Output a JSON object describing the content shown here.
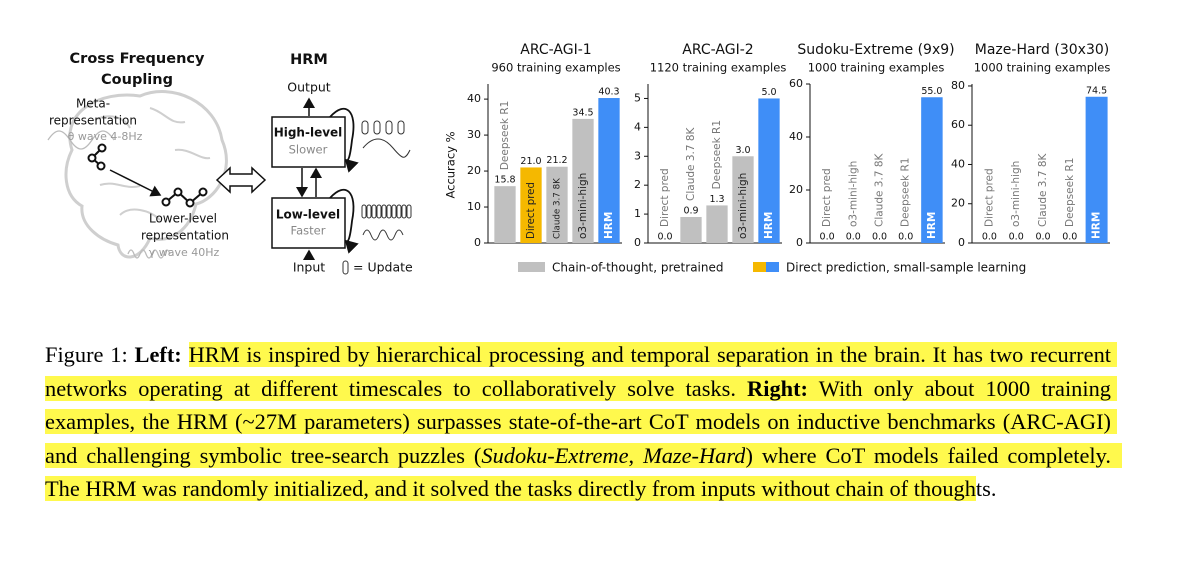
{
  "diagram": {
    "left": {
      "title": [
        "Cross Frequency",
        "Coupling"
      ],
      "meta": [
        "Meta-",
        "representation"
      ],
      "theta": "θ wave 4-8Hz",
      "lower": [
        "Lower-level",
        "representation"
      ],
      "gamma": "γ wave 40Hz"
    },
    "hrm": {
      "title": "HRM",
      "output": "Output",
      "high": "High-level",
      "slower": "Slower",
      "low": "Low-level",
      "faster": "Faster",
      "input": "Input",
      "update": "= Update"
    }
  },
  "chart_data": [
    {
      "type": "bar",
      "title": "ARC-AGI-1",
      "subtitle": "960 training examples",
      "ylabel": "Accuracy %",
      "categories": [
        "Deepseek R1",
        "Direct pred",
        "Claude 3.7 8K",
        "o3-mini-high",
        "HRM"
      ],
      "values": [
        15.8,
        21.0,
        21.2,
        34.5,
        40.3
      ],
      "value_labels": [
        "15.8",
        "21.0",
        "21.2",
        "34.5",
        "40.3"
      ],
      "colors": [
        "#c0c0c0",
        "#f5b800",
        "#c0c0c0",
        "#c0c0c0",
        "#3f8ef7"
      ],
      "ylim": [
        0,
        44.2
      ],
      "yticks": [
        0,
        10,
        20,
        30,
        40
      ]
    },
    {
      "type": "bar",
      "title": "ARC-AGI-2",
      "subtitle": "1120 training examples",
      "categories": [
        "Direct pred",
        "Claude 3.7 8K",
        "Deepseek R1",
        "o3-mini-high",
        "HRM"
      ],
      "values": [
        0.0,
        0.9,
        1.3,
        3.0,
        5.0
      ],
      "value_labels": [
        "0.0",
        "0.9",
        "1.3",
        "3.0",
        "5.0"
      ],
      "colors": [
        "#f5b800",
        "#c0c0c0",
        "#c0c0c0",
        "#c0c0c0",
        "#3f8ef7"
      ],
      "ylim": [
        0,
        5.5
      ],
      "yticks": [
        0,
        1,
        2,
        3,
        4,
        5
      ]
    },
    {
      "type": "bar",
      "title": "Sudoku-Extreme (9x9)",
      "subtitle": "1000 training examples",
      "categories": [
        "Direct pred",
        "o3-mini-high",
        "Claude 3.7 8K",
        "Deepseek R1",
        "HRM"
      ],
      "values": [
        0.0,
        0.0,
        0.0,
        0.0,
        55.0
      ],
      "value_labels": [
        "0.0",
        "0.0",
        "0.0",
        "0.0",
        "55.0"
      ],
      "colors": [
        "#f5b800",
        "#c0c0c0",
        "#c0c0c0",
        "#c0c0c0",
        "#3f8ef7"
      ],
      "ylim": [
        0,
        60
      ],
      "yticks": [
        0,
        20,
        40,
        60
      ]
    },
    {
      "type": "bar",
      "title": "Maze-Hard (30x30)",
      "subtitle": "1000 training examples",
      "categories": [
        "Direct pred",
        "o3-mini-high",
        "Claude 3.7 8K",
        "Deepseek R1",
        "HRM"
      ],
      "values": [
        0.0,
        0.0,
        0.0,
        0.0,
        74.5
      ],
      "value_labels": [
        "0.0",
        "0.0",
        "0.0",
        "0.0",
        "74.5"
      ],
      "colors": [
        "#f5b800",
        "#c0c0c0",
        "#c0c0c0",
        "#c0c0c0",
        "#3f8ef7"
      ],
      "ylim": [
        0,
        81
      ],
      "yticks": [
        0,
        20,
        40,
        60,
        80
      ]
    }
  ],
  "legend": [
    {
      "label": "Chain-of-thought, pretrained",
      "colors": [
        "#c0c0c0"
      ]
    },
    {
      "label": "Direct prediction, small-sample learning",
      "colors": [
        "#f5b800",
        "#3f8ef7"
      ]
    }
  ],
  "caption": [
    {
      "text": "Figure 1: ",
      "bold": false,
      "italic": false,
      "highlight": false
    },
    {
      "text": "Left:",
      "bold": true,
      "italic": false,
      "highlight": false
    },
    {
      "text": " ",
      "bold": false,
      "italic": false,
      "highlight": false
    },
    {
      "text": "HRM is inspired by hierarchical processing and temporal separation in the brain. It has two recurrent networks operating at different timescales to collaboratively solve tasks. ",
      "bold": false,
      "italic": false,
      "highlight": true
    },
    {
      "text": "Right:",
      "bold": true,
      "italic": false,
      "highlight": true
    },
    {
      "text": " With only about 1000 training examples, the HRM (~27M parameters) surpasses state-of-the-art CoT models on inductive benchmarks (ARC-AGI) and challenging symbolic tree-search puzzles (",
      "bold": false,
      "italic": false,
      "highlight": true
    },
    {
      "text": "Sudoku-Extreme",
      "bold": false,
      "italic": true,
      "highlight": true
    },
    {
      "text": ", ",
      "bold": false,
      "italic": false,
      "highlight": true
    },
    {
      "text": "Maze-Hard",
      "bold": false,
      "italic": true,
      "highlight": true
    },
    {
      "text": ") where CoT models failed completely.  The HRM was randomly initialized, and it solved the tasks directly from inputs without chain of though",
      "bold": false,
      "italic": false,
      "highlight": true
    },
    {
      "text": "ts.",
      "bold": false,
      "italic": false,
      "highlight": false
    }
  ]
}
